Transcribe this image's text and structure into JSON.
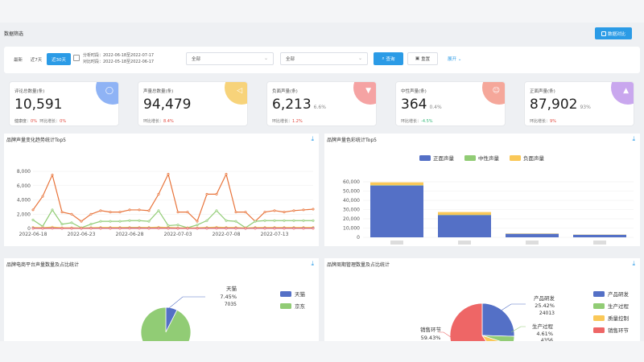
{
  "filter": {
    "title": "数据筛选",
    "compare_btn": "数据对比",
    "recent_label": "最新",
    "opt7": "近7天",
    "opt30": "近30天",
    "analysis_period": "分析时段：2022-06-18至2022-07-17",
    "compare_period": "对比时段：2022-05-18至2022-06-17",
    "select1": "全部",
    "select2": "全部",
    "query_btn": "查询",
    "reset_btn": "重置",
    "expand": "展开 ⌄"
  },
  "kpis": [
    {
      "label": "评论总数量(条)",
      "value": "10,591",
      "pct": "",
      "sub_a_label": "健康度：",
      "sub_a_value": "0%",
      "sub_b_label": "环比增长：",
      "sub_b_value": "0%",
      "color": "#8fb3f5",
      "icon": "chat-icon"
    },
    {
      "label": "声量总数量(条)",
      "value": "94,479",
      "pct": "",
      "sub_a_label": "",
      "sub_a_value": "",
      "sub_b_label": "环比增长：",
      "sub_b_value": "8.4%",
      "color": "#f7d37a",
      "icon": "speaker-icon"
    },
    {
      "label": "负面声量(条)",
      "value": "6,213",
      "pct": "6.6%",
      "sub_a_label": "",
      "sub_a_value": "",
      "sub_b_label": "环比增长：",
      "sub_b_value": "1.2%",
      "color": "#f5a3a3",
      "icon": "thumbs-down-icon"
    },
    {
      "label": "中性声量(条)",
      "value": "364",
      "pct": "0.4%",
      "sub_a_label": "",
      "sub_a_value": "",
      "sub_b_label": "环比增长：",
      "sub_b_value": "-4.5%",
      "color": "#f5a79a",
      "icon": "neutral-face-icon"
    },
    {
      "label": "正面声量(条)",
      "value": "87,902",
      "pct": "93%",
      "sub_a_label": "",
      "sub_a_value": "",
      "sub_b_label": "环比增长：",
      "sub_b_value": "9%",
      "color": "#c9a7ee",
      "icon": "thumbs-up-icon"
    }
  ],
  "panels": {
    "trend_title": "品牌声量变化趋势统计Top5",
    "sentiment_title": "品牌声量色彩统计Top5",
    "platform_title": "品牌电商平台声量数量及占比统计",
    "cycle_title": "品牌周期管理数量及占比统计"
  },
  "chart_data": [
    {
      "type": "line",
      "title": "品牌声量变化趋势统计Top5",
      "ylim": [
        0,
        8000
      ],
      "yticks": [
        "0",
        "2,000",
        "4,000",
        "6,000",
        "8,000"
      ],
      "xticks": [
        "2022-06-18",
        "2022-06-23",
        "2022-06-28",
        "2022-07-03",
        "2022-07-08",
        "2022-07-13"
      ],
      "series": [
        {
          "color": "#e8743b",
          "values": [
            2600,
            4500,
            7500,
            2300,
            2000,
            1000,
            2000,
            2500,
            2300,
            2300,
            2600,
            2600,
            2500,
            4800,
            7600,
            2300,
            2300,
            1000,
            4800,
            4800,
            7600,
            2300,
            2300,
            1000,
            2300,
            2500,
            2300,
            2500,
            2600,
            2700
          ]
        },
        {
          "color": "#91cc75",
          "values": [
            1200,
            300,
            2600,
            600,
            800,
            100,
            600,
            1000,
            1000,
            1000,
            1100,
            1100,
            1000,
            2500,
            400,
            500,
            100,
            500,
            1100,
            2500,
            1100,
            1000,
            100,
            1000,
            1100,
            1100,
            1100,
            1100,
            1100,
            1100
          ]
        },
        {
          "color": "#fac858",
          "values": [
            150,
            120,
            200,
            100,
            100,
            80,
            120,
            150,
            150,
            150,
            160,
            160,
            150,
            180,
            150,
            100,
            80,
            100,
            150,
            180,
            150,
            150,
            80,
            150,
            150,
            150,
            150,
            150,
            150,
            150
          ]
        },
        {
          "color": "#5470c6",
          "values": [
            50,
            40,
            60,
            30,
            30,
            20,
            40,
            50,
            50,
            50,
            55,
            55,
            50,
            60,
            50,
            30,
            20,
            30,
            50,
            60,
            50,
            50,
            20,
            50,
            50,
            50,
            50,
            50,
            50,
            50
          ]
        },
        {
          "color": "#ee6666",
          "values": [
            20,
            15,
            25,
            10,
            10,
            8,
            15,
            20,
            20,
            20,
            22,
            22,
            20,
            25,
            20,
            10,
            8,
            10,
            20,
            25,
            20,
            20,
            8,
            20,
            20,
            20,
            20,
            20,
            20,
            20
          ]
        }
      ]
    },
    {
      "type": "bar",
      "title": "品牌声量色彩统计Top5",
      "legend": [
        "正面声量",
        "中性声量",
        "负面声量"
      ],
      "colors": [
        "#5470c6",
        "#91cc75",
        "#fac858"
      ],
      "ylim": [
        0,
        60000
      ],
      "yticks": [
        "0",
        "10,000",
        "20,000",
        "30,000",
        "40,000",
        "50,000",
        "60,000"
      ],
      "bars": [
        {
          "values": [
            56000,
            400,
            3000
          ]
        },
        {
          "values": [
            24000,
            300,
            3000
          ]
        },
        {
          "values": [
            3800,
            50,
            300
          ]
        },
        {
          "values": [
            2800,
            40,
            200
          ]
        }
      ]
    },
    {
      "type": "pie",
      "title": "品牌电商平台声量数量及占比统计",
      "legend": [
        "天猫",
        "京东"
      ],
      "colors": [
        "#5470c6",
        "#91cc75"
      ],
      "slices": [
        {
          "name": "天猫",
          "percent": "7.45%",
          "count": "7035",
          "value": 7.45
        },
        {
          "name": "京东",
          "value": 92.55
        }
      ]
    },
    {
      "type": "pie",
      "title": "品牌周期管理数量及占比统计",
      "legend": [
        "产品研发",
        "生产过程",
        "质量控制",
        "销售环节"
      ],
      "colors": [
        "#5470c6",
        "#91cc75",
        "#fac858",
        "#ee6666"
      ],
      "slices": [
        {
          "name": "产品研发",
          "percent": "25.42%",
          "count": "24013",
          "value": 25.42
        },
        {
          "name": "生产过程",
          "percent": "4.61%",
          "count": "4356",
          "value": 4.61
        },
        {
          "name": "质量控制",
          "value": 10.54
        },
        {
          "name": "销售环节",
          "percent": "59.43%",
          "value": 59.43
        }
      ]
    }
  ]
}
